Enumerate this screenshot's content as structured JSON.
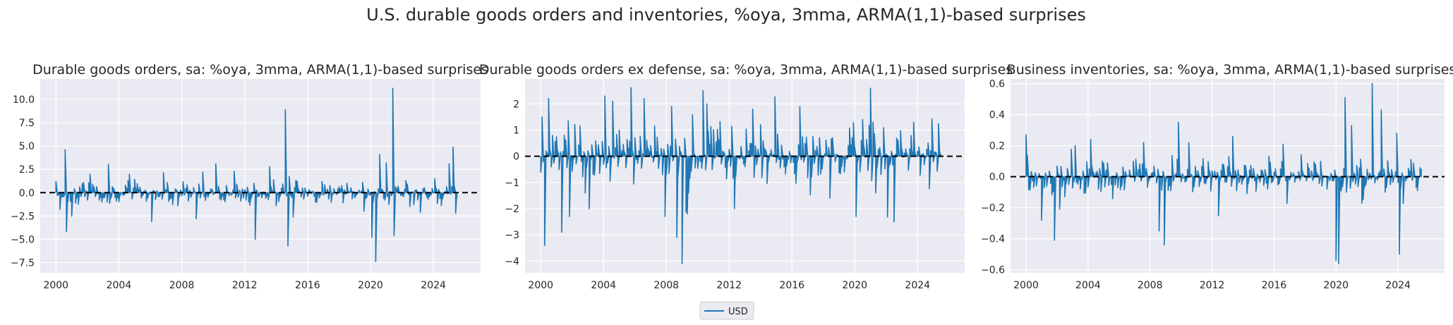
{
  "figure": {
    "suptitle": "U.S. durable goods orders and inventories, %oya, 3mma, ARMA(1,1)-based surprises",
    "series_color": "#1f77b4",
    "background": "#eaeaf2",
    "legend": {
      "label": "USD",
      "placement": "bottom-center"
    }
  },
  "chart_data": [
    {
      "type": "line",
      "title": "Durable goods orders, sa: %oya, 3mma, ARMA(1,1)-based surprises",
      "xlabel": "",
      "ylabel": "",
      "xlim": [
        1999.0,
        2027.0
      ],
      "ylim": [
        -8.6,
        12.2
      ],
      "x_ticks": [
        2000,
        2004,
        2008,
        2012,
        2016,
        2020,
        2024
      ],
      "x_tick_labels": [
        "2000",
        "2004",
        "2008",
        "2012",
        "2016",
        "2020",
        "2024"
      ],
      "y_ticks": [
        -7.5,
        -5.0,
        -2.5,
        0.0,
        2.5,
        5.0,
        7.5,
        10.0
      ],
      "y_tick_labels": [
        "−7.5",
        "−5.0",
        "−2.5",
        "0.0",
        "2.5",
        "5.0",
        "7.5",
        "10.0"
      ],
      "hline": 0,
      "series": [
        {
          "name": "USD",
          "x_start": 2000.0,
          "x_step": 0.08333,
          "scale": 0.6,
          "seed": 11,
          "spikes": [
            [
              2000.0,
              1.2
            ],
            [
              2000.25,
              -1.8
            ],
            [
              2000.58,
              4.6
            ],
            [
              2000.66,
              -4.2
            ],
            [
              2001.0,
              -2.5
            ],
            [
              2002.2,
              2.0
            ],
            [
              2004.7,
              2.0
            ],
            [
              2006.1,
              -3.1
            ],
            [
              2008.9,
              -2.8
            ],
            [
              2009.3,
              2.2
            ],
            [
              2010.2,
              3.1
            ],
            [
              2011.3,
              2.3
            ],
            [
              2012.7,
              -5.0
            ],
            [
              2013.6,
              2.8
            ],
            [
              2014.6,
              8.9
            ],
            [
              2014.75,
              -5.7
            ],
            [
              2015.1,
              -2.6
            ],
            [
              2019.6,
              -2.0
            ],
            [
              2020.1,
              -4.8
            ],
            [
              2020.3,
              -7.4
            ],
            [
              2020.6,
              4.1
            ],
            [
              2021.0,
              3.2
            ],
            [
              2021.4,
              11.2
            ],
            [
              2021.5,
              -4.6
            ],
            [
              2023.2,
              -2.1
            ],
            [
              2025.0,
              3.1
            ],
            [
              2025.25,
              4.9
            ],
            [
              2025.4,
              -2.2
            ]
          ]
        }
      ]
    },
    {
      "type": "line",
      "title": "Durable goods orders ex defense, sa: %oya, 3mma, ARMA(1,1)-based surprises",
      "xlabel": "",
      "ylabel": "",
      "xlim": [
        1999.0,
        2027.0
      ],
      "ylim": [
        -4.45,
        2.95
      ],
      "x_ticks": [
        2000,
        2004,
        2008,
        2012,
        2016,
        2020,
        2024
      ],
      "x_tick_labels": [
        "2000",
        "2004",
        "2008",
        "2012",
        "2016",
        "2020",
        "2024"
      ],
      "y_ticks": [
        -4,
        -3,
        -2,
        -1,
        0,
        1,
        2
      ],
      "y_tick_labels": [
        "−4",
        "−3",
        "−2",
        "−1",
        "0",
        "1",
        "2"
      ],
      "hline": 0,
      "series": [
        {
          "name": "USD",
          "x_start": 2000.0,
          "x_step": 0.08333,
          "scale": 0.55,
          "seed": 23,
          "spikes": [
            [
              2000.1,
              1.5
            ],
            [
              2000.25,
              -3.4
            ],
            [
              2000.5,
              2.2
            ],
            [
              2001.3,
              -2.9
            ],
            [
              2001.8,
              -2.3
            ],
            [
              2003.1,
              -2.0
            ],
            [
              2004.1,
              2.3
            ],
            [
              2004.6,
              2.1
            ],
            [
              2006.6,
              2.2
            ],
            [
              2007.9,
              -2.3
            ],
            [
              2008.3,
              1.9
            ],
            [
              2008.7,
              -3.1
            ],
            [
              2009.0,
              -4.1
            ],
            [
              2009.3,
              -2.2
            ],
            [
              2010.3,
              2.5
            ],
            [
              2010.6,
              2.0
            ],
            [
              2012.3,
              -2.0
            ],
            [
              2013.5,
              1.8
            ],
            [
              2016.5,
              1.9
            ],
            [
              2020.1,
              -2.3
            ],
            [
              2020.5,
              1.4
            ],
            [
              2021.0,
              2.6
            ],
            [
              2021.2,
              1.3
            ]
          ]
        }
      ]
    },
    {
      "type": "line",
      "title": "Business inventories, sa: %oya, 3mma, ARMA(1,1)-based surprises",
      "xlabel": "",
      "ylabel": "",
      "xlim": [
        1999.0,
        2027.0
      ],
      "ylim": [
        -0.62,
        0.63
      ],
      "x_ticks": [
        2000,
        2004,
        2008,
        2012,
        2016,
        2020,
        2024
      ],
      "x_tick_labels": [
        "2000",
        "2004",
        "2008",
        "2012",
        "2016",
        "2020",
        "2024"
      ],
      "y_ticks": [
        -0.6,
        -0.4,
        -0.2,
        0.0,
        0.2,
        0.4,
        0.6
      ],
      "y_tick_labels": [
        "−0.6",
        "−0.4",
        "−0.2",
        "0.0",
        "0.2",
        "0.4",
        "0.6"
      ],
      "hline": 0,
      "series": [
        {
          "name": "USD",
          "x_start": 2000.0,
          "x_step": 0.08333,
          "scale": 0.055,
          "seed": 37,
          "spikes": [
            [
              2000.0,
              0.27
            ],
            [
              2001.0,
              -0.28
            ],
            [
              2001.8,
              -0.41
            ],
            [
              2003.2,
              0.2
            ],
            [
              2004.2,
              0.24
            ],
            [
              2007.6,
              0.22
            ],
            [
              2008.6,
              -0.35
            ],
            [
              2008.9,
              -0.44
            ],
            [
              2009.8,
              0.35
            ],
            [
              2010.5,
              0.22
            ],
            [
              2013.3,
              0.26
            ],
            [
              2016.6,
              0.21
            ],
            [
              2020.0,
              -0.54
            ],
            [
              2020.2,
              -0.56
            ],
            [
              2020.6,
              0.51
            ],
            [
              2021.0,
              0.33
            ],
            [
              2022.3,
              0.6
            ],
            [
              2022.9,
              0.43
            ],
            [
              2023.9,
              0.28
            ],
            [
              2024.1,
              -0.5
            ]
          ]
        }
      ]
    }
  ]
}
